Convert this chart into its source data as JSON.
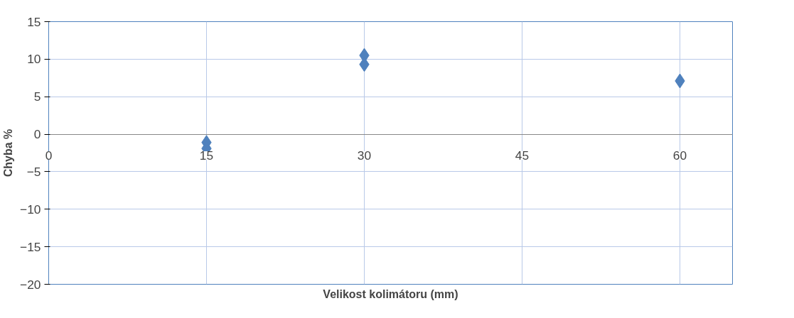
{
  "chart_data": {
    "type": "scatter",
    "xlabel": "Velikost kolimátoru (mm)",
    "ylabel": "Chyba %",
    "x": [
      15,
      15,
      30,
      30,
      60
    ],
    "values": [
      -1.1,
      -1.9,
      10.5,
      9.3,
      7.1
    ],
    "color": "#4f81bd",
    "marker": "diamond",
    "xlim": [
      0,
      65
    ],
    "xticks": [
      0,
      15,
      30,
      45,
      60
    ],
    "ylim": [
      -20,
      15
    ],
    "yticks": [
      -20,
      -15,
      -10,
      -5,
      0,
      5,
      10,
      15
    ],
    "grid": true
  }
}
